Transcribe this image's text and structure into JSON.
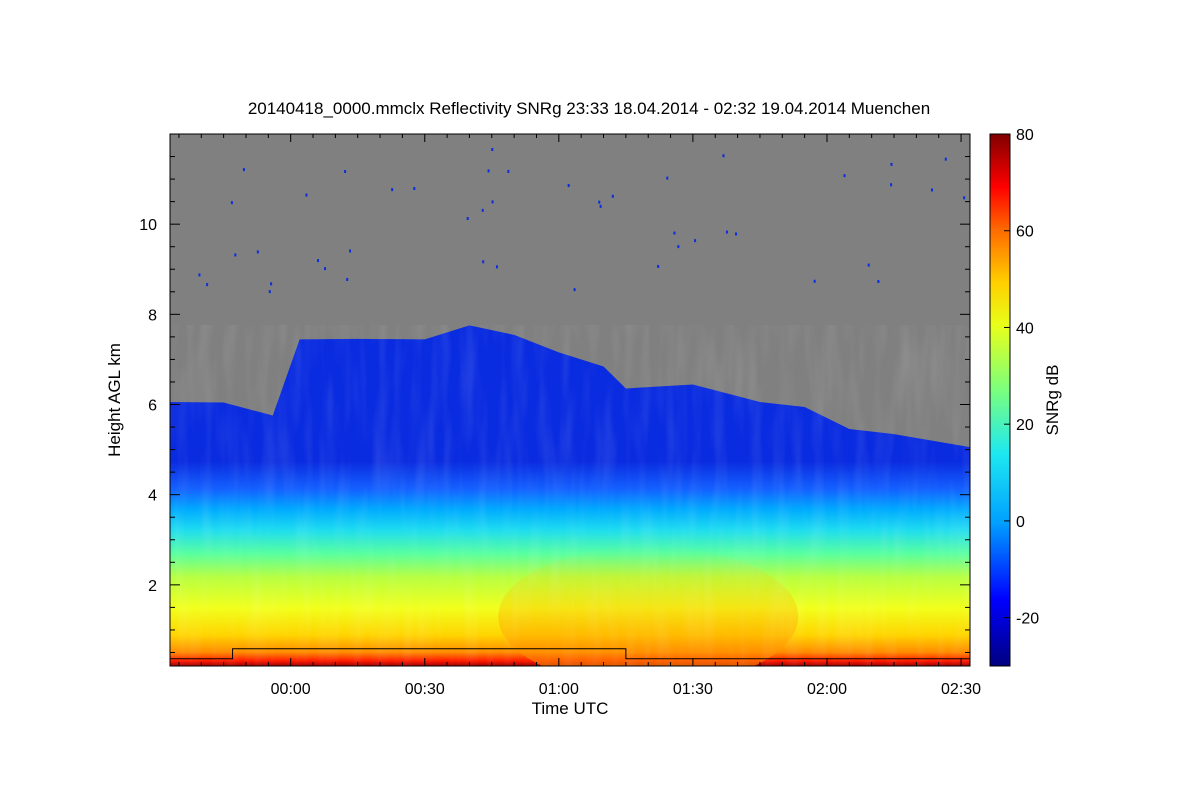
{
  "chart_data": {
    "type": "heatmap",
    "title": "20140418_0000.mmclx Reflectivity SNRg   23:33 18.04.2014 - 02:32 19.04.2014 Muenchen",
    "xlabel": "Time UTC",
    "ylabel": "Height AGL km",
    "colorbar_label": "SNRg dB",
    "x_range": [
      "23:33",
      "02:32"
    ],
    "x_ticks": [
      "00:00",
      "00:30",
      "01:00",
      "01:30",
      "02:00",
      "02:30"
    ],
    "y_range": [
      0.2,
      12.0
    ],
    "y_ticks": [
      "2",
      "4",
      "6",
      "8",
      "10"
    ],
    "y_tick_values": [
      2,
      4,
      6,
      8,
      10
    ],
    "colorbar_range": [
      -30,
      80
    ],
    "colorbar_ticks": [
      "-20",
      "0",
      "20",
      "40",
      "60",
      "80"
    ],
    "colorbar_tick_values": [
      -20,
      0,
      20,
      40,
      60,
      80
    ],
    "colormap": [
      "#00007f",
      "#0000ff",
      "#00b4ff",
      "#24ffd9",
      "#b4ff47",
      "#ffe600",
      "#ff5a00",
      "#e00000",
      "#7f0000"
    ],
    "no_data_color": "#808080",
    "cloud_top_km": [
      {
        "t": "23:33",
        "h": 6.1
      },
      {
        "t": "23:45",
        "h": 6.0
      },
      {
        "t": "23:56",
        "h": 5.8
      },
      {
        "t": "00:02",
        "h": 7.4
      },
      {
        "t": "00:15",
        "h": 7.5
      },
      {
        "t": "00:30",
        "h": 7.4
      },
      {
        "t": "00:40",
        "h": 7.8
      },
      {
        "t": "00:50",
        "h": 7.5
      },
      {
        "t": "01:00",
        "h": 7.2
      },
      {
        "t": "01:10",
        "h": 6.8
      },
      {
        "t": "01:15",
        "h": 6.4
      },
      {
        "t": "01:30",
        "h": 6.4
      },
      {
        "t": "01:45",
        "h": 6.1
      },
      {
        "t": "01:55",
        "h": 5.9
      },
      {
        "t": "02:05",
        "h": 5.5
      },
      {
        "t": "02:15",
        "h": 5.3
      },
      {
        "t": "02:32",
        "h": 5.1
      }
    ]
  }
}
